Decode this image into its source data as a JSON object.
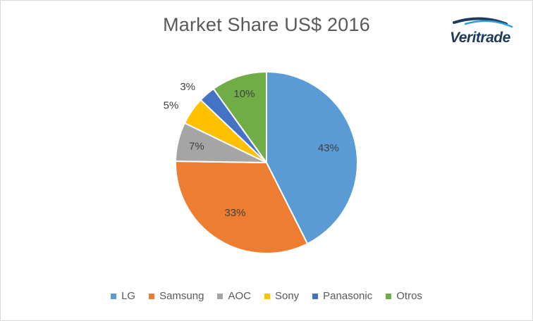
{
  "brand": {
    "logo_text": "Veritrade",
    "logo_icon": "veritrade-swoosh-icon",
    "logo_colors": [
      "#1f3b5c",
      "#2e9fd9"
    ]
  },
  "chart_data": {
    "type": "pie",
    "title": "Market Share US$ 2016",
    "legend_position": "bottom",
    "slices": [
      {
        "name": "LG",
        "value": 43,
        "label": "43%",
        "color": "#5b9bd5"
      },
      {
        "name": "Samsung",
        "value": 33,
        "label": "33%",
        "color": "#ed7d31"
      },
      {
        "name": "AOC",
        "value": 7,
        "label": "7%",
        "color": "#a5a5a5"
      },
      {
        "name": "Sony",
        "value": 5,
        "label": "5%",
        "color": "#ffc000"
      },
      {
        "name": "Panasonic",
        "value": 3,
        "label": "3%",
        "color": "#4472c4"
      },
      {
        "name": "Otros",
        "value": 10,
        "label": "10%",
        "color": "#70ad47"
      }
    ]
  }
}
